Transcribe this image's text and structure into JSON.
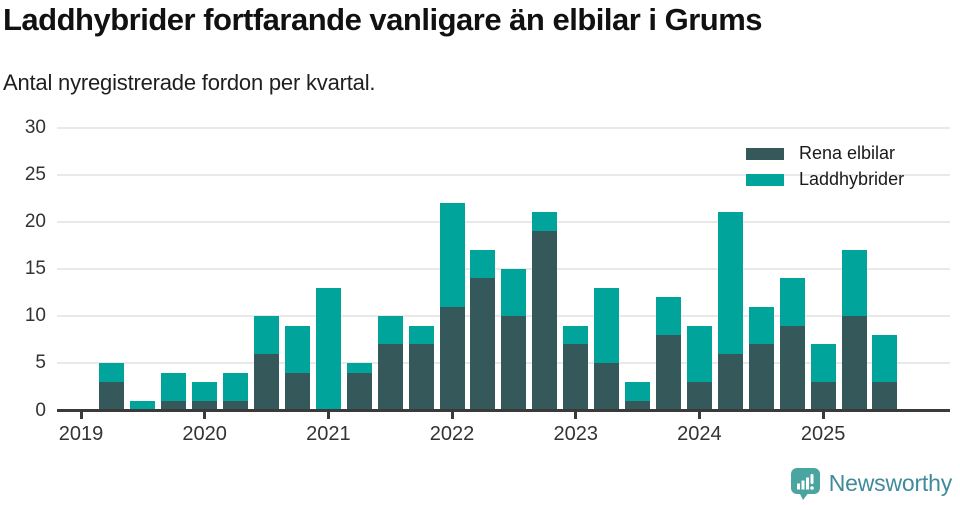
{
  "header": {
    "title": "Laddhybrider fortfarande vanligare än elbilar i Grums",
    "subtitle": "Antal nyregistrerade fordon per kvartal."
  },
  "legend": {
    "items": [
      {
        "label": "Rena elbilar",
        "color": "#35595a"
      },
      {
        "label": "Laddhybrider",
        "color": "#00a49b"
      }
    ]
  },
  "footer": {
    "brand": "Newsworthy"
  },
  "colors": {
    "rena_elbilar": "#35595a",
    "laddhybrider": "#00a49b",
    "grid": "#e9e9e9",
    "axis": "#3a3a3a",
    "tick_label": "#333333",
    "logo_icon": "#4aa5a0",
    "logo_text": "#3f8a9d"
  },
  "icons": [
    {
      "name": "newsworthy-speech-bubble-bar-chart-icon"
    }
  ],
  "chart_data": {
    "type": "bar",
    "stacked": true,
    "title": "Laddhybrider fortfarande vanligare än elbilar i Grums",
    "subtitle": "Antal nyregistrerade fordon per kvartal.",
    "xlabel": "",
    "ylabel": "",
    "ylim": [
      0,
      30
    ],
    "yticks": [
      0,
      5,
      10,
      15,
      20,
      25,
      30
    ],
    "grid": "horizontal",
    "legend_position": "top-right",
    "xtick_years": [
      "2019",
      "2020",
      "2021",
      "2022",
      "2023",
      "2024",
      "2025"
    ],
    "categories": [
      "2019 Q1",
      "2019 Q2",
      "2019 Q3",
      "2019 Q4",
      "2020 Q1",
      "2020 Q2",
      "2020 Q3",
      "2020 Q4",
      "2021 Q1",
      "2021 Q2",
      "2021 Q3",
      "2021 Q4",
      "2022 Q1",
      "2022 Q2",
      "2022 Q3",
      "2022 Q4",
      "2023 Q1",
      "2023 Q2",
      "2023 Q3",
      "2023 Q4",
      "2024 Q1",
      "2024 Q2",
      "2024 Q3",
      "2024 Q4",
      "2025 Q1",
      "2025 Q2",
      "2025 Q3"
    ],
    "series": [
      {
        "name": "Rena elbilar",
        "color": "#35595a",
        "values": [
          0,
          3,
          0,
          1,
          1,
          1,
          6,
          4,
          0,
          4,
          7,
          7,
          11,
          14,
          10,
          19,
          7,
          5,
          1,
          8,
          3,
          6,
          7,
          9,
          3,
          10,
          3
        ]
      },
      {
        "name": "Laddhybrider",
        "color": "#00a49b",
        "values": [
          0,
          2,
          1,
          3,
          2,
          3,
          4,
          5,
          13,
          1,
          3,
          2,
          11,
          3,
          5,
          2,
          2,
          8,
          2,
          4,
          6,
          15,
          4,
          5,
          4,
          7,
          5
        ]
      }
    ],
    "totals": [
      0,
      5,
      1,
      4,
      3,
      4,
      10,
      9,
      13,
      5,
      10,
      9,
      22,
      17,
      15,
      21,
      9,
      13,
      3,
      12,
      9,
      21,
      11,
      14,
      7,
      17,
      8
    ]
  }
}
